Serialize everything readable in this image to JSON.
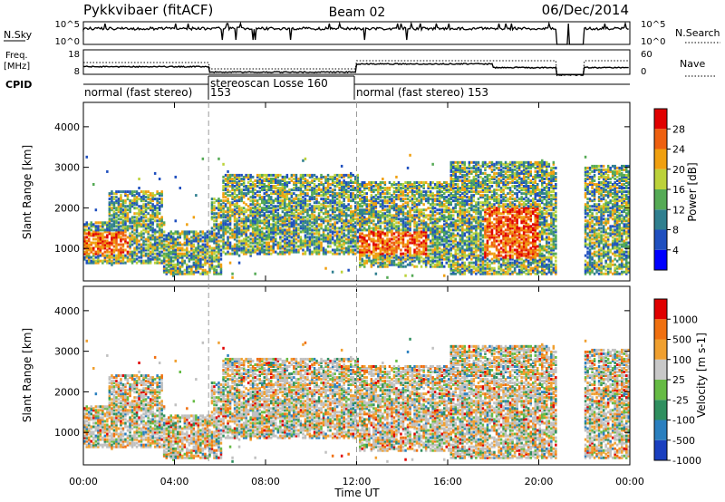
{
  "header": {
    "station": "Pykkvibaer (fitACF)",
    "beam": "Beam 02",
    "date": "06/Dec/2014"
  },
  "strips": {
    "nsky": {
      "label": "N.Sky",
      "tick_top": "10^5",
      "tick_bottom": "10^0",
      "right_label": "N.Search",
      "right_tick_top": "10^5",
      "right_tick_bottom": "10^0"
    },
    "freq": {
      "label_line1": "Freq.",
      "label_line2": "[MHz]",
      "tick_top": "18",
      "tick_bottom": "8",
      "right_label": "Nave",
      "right_tick_top": "60",
      "right_tick_bottom": "0"
    },
    "cpid": {
      "label": "CPID",
      "segments": [
        {
          "text": "normal (fast stereo)",
          "start_h": 0.0
        },
        {
          "text": "153",
          "start_h": 5.5
        },
        {
          "text": "stereoscan Losse 160",
          "start_h": 5.5
        },
        {
          "text": "normal (fast stereo) 153",
          "start_h": 12.0
        }
      ],
      "boundaries_h": [
        5.5,
        12.0
      ]
    }
  },
  "chart_data": [
    {
      "type": "heatmap",
      "name": "power",
      "ylabel": "Slant Range [km]",
      "xlabel": "",
      "xlim": [
        0,
        24
      ],
      "ylim": [
        200,
        4600
      ],
      "yticks": [
        1000,
        2000,
        3000,
        4000
      ],
      "colorbar": {
        "label": "Power [dB]",
        "ticks": [
          "4",
          "8",
          "12",
          "16",
          "20",
          "24",
          "28"
        ],
        "colors": [
          "#0000ff",
          "#1f4fbf",
          "#2f7f8f",
          "#55aa55",
          "#bcd23a",
          "#f0a010",
          "#ee6010",
          "#e00000"
        ],
        "range": [
          0,
          32
        ]
      }
    },
    {
      "type": "heatmap",
      "name": "velocity",
      "ylabel": "Slant Range [km]",
      "xlabel": "Time UT",
      "xlim": [
        0,
        24
      ],
      "ylim": [
        200,
        4600
      ],
      "yticks": [
        1000,
        2000,
        3000,
        4000
      ],
      "xticks": [
        "00:00",
        "04:00",
        "08:00",
        "12:00",
        "16:00",
        "20:00",
        "00:00"
      ],
      "colorbar": {
        "label": "Velocity [m s-1]",
        "ticks": [
          "1000",
          "500",
          "100",
          "25",
          "-25",
          "-100",
          "-500",
          "-1000"
        ],
        "colors": [
          "#1a3fbf",
          "#2a7fbf",
          "#2f8f5f",
          "#66bb44",
          "#c8c8c8",
          "#f0a030",
          "#f07010",
          "#e00000"
        ]
      }
    }
  ],
  "colors": {
    "ground_scatter": "#c0c0c0",
    "axis": "#000000",
    "boundary_dash": "#9a9a9a"
  }
}
